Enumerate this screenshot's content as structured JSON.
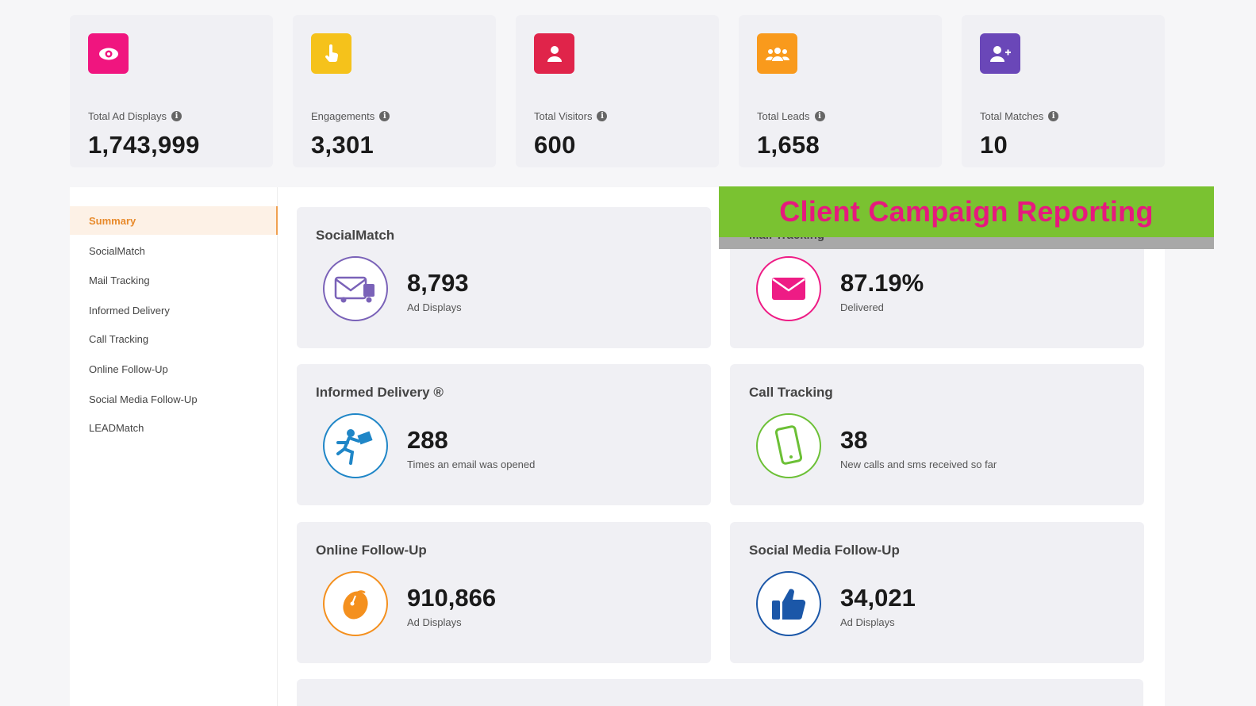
{
  "stats": [
    {
      "label": "Total Ad Displays",
      "value": "1,743,999",
      "icon": "eye-icon",
      "color": "#f0157f"
    },
    {
      "label": "Engagements",
      "value": "3,301",
      "icon": "pointer-hand-icon",
      "color": "#f5c21b"
    },
    {
      "label": "Total Visitors",
      "value": "600",
      "icon": "user-icon",
      "color": "#e0244a"
    },
    {
      "label": "Total Leads",
      "value": "1,658",
      "icon": "users-group-icon",
      "color": "#f99a1c"
    },
    {
      "label": "Total Matches",
      "value": "10",
      "icon": "user-plus-icon",
      "color": "#6a47b8"
    }
  ],
  "sidebar": {
    "items": [
      {
        "label": "Summary",
        "active": true
      },
      {
        "label": "SocialMatch"
      },
      {
        "label": "Mail Tracking"
      },
      {
        "label": "Informed Delivery"
      },
      {
        "label": "Call Tracking"
      },
      {
        "label": "Online Follow-Up"
      },
      {
        "label": "Social Media Follow-Up"
      },
      {
        "label": "LEADMatch"
      }
    ]
  },
  "cards": [
    {
      "title": "SocialMatch",
      "value": "8,793",
      "sub": "Ad Displays",
      "icon": "mail-truck-icon",
      "color": "#7a62b8"
    },
    {
      "title": "Mail Tracking",
      "value": "87.19%",
      "sub": "Delivered",
      "icon": "envelope-icon",
      "color": "#ee1c85"
    },
    {
      "title": "Informed Delivery ®",
      "value": "288",
      "sub": "Times an email was opened",
      "icon": "mail-runner-icon",
      "color": "#1f86c7"
    },
    {
      "title": "Call Tracking",
      "value": "38",
      "sub": "New calls and sms received so far",
      "icon": "mobile-phone-icon",
      "color": "#6cc036"
    },
    {
      "title": "Online Follow-Up",
      "value": "910,866",
      "sub": "Ad Displays",
      "icon": "computer-mouse-icon",
      "color": "#f4901e"
    },
    {
      "title": "Social Media Follow-Up",
      "value": "34,021",
      "sub": "Ad Displays",
      "icon": "thumbs-up-icon",
      "color": "#1b57a8"
    }
  ],
  "banner": {
    "text": "Client Campaign Reporting",
    "bg": "#7ac231",
    "color": "#e6197e"
  }
}
